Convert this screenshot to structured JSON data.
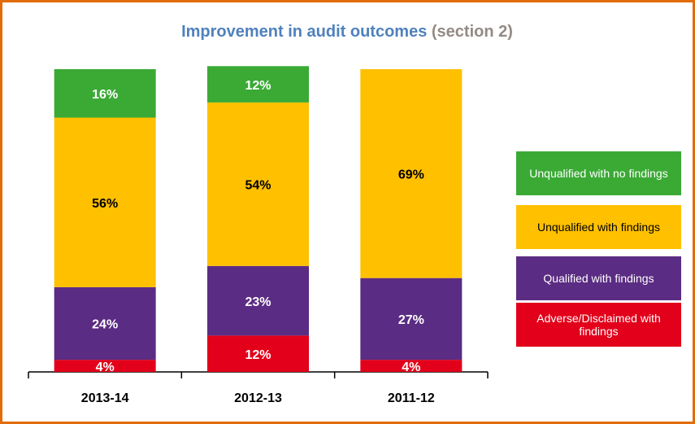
{
  "chart_data": {
    "type": "stacked_bar",
    "title": "Improvement in audit outcomes",
    "title_note": "(section 2)",
    "categories": [
      "2013-14",
      "2012-13",
      "2011-12"
    ],
    "ylim": [
      0,
      100
    ],
    "series": [
      {
        "name": "Adverse/Disclaimed with findings",
        "color": "#e2001a",
        "values": [
          4,
          12,
          4
        ],
        "value_labels": [
          "4%",
          "12%",
          "4%"
        ]
      },
      {
        "name": "Qualified with findings",
        "color": "#5b2c83",
        "values": [
          24,
          23,
          27
        ],
        "value_labels": [
          "24%",
          "23%",
          "27%"
        ]
      },
      {
        "name": "Unqualified with findings",
        "color": "#ffc000",
        "values": [
          56,
          54,
          69
        ],
        "value_labels": [
          "56%",
          "54%",
          "69%"
        ]
      },
      {
        "name": "Unqualified with no findings",
        "color": "#3aaa35",
        "values": [
          16,
          12,
          0
        ],
        "value_labels": [
          "16%",
          "12%",
          null
        ]
      }
    ]
  }
}
